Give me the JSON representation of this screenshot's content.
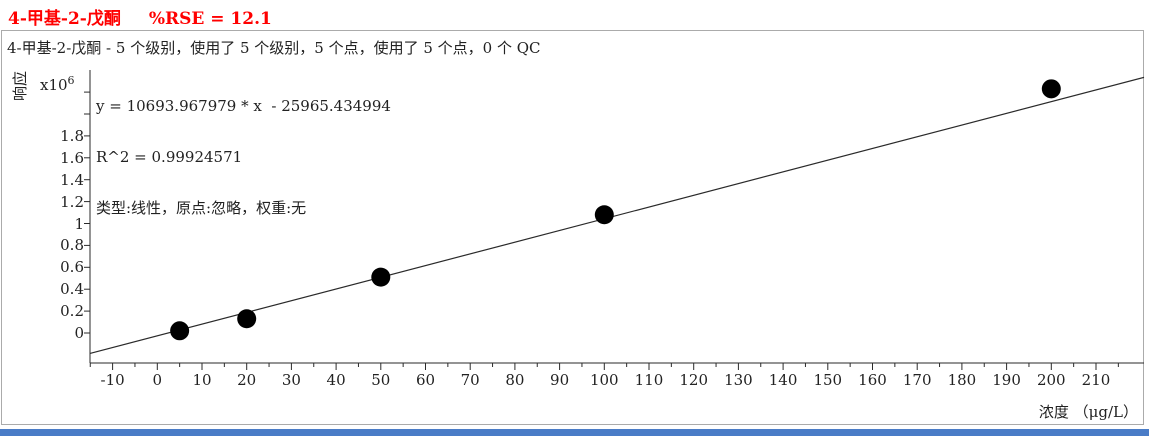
{
  "title": {
    "compound": "4-甲基-2-戊酮",
    "rse": "%RSE = 12.1"
  },
  "subtitle": "4-甲基-2-戊酮 - 5 个级别，使用了 5 个级别，5 个点，使用了 5 个点，0 个 QC",
  "equation": {
    "line1": "y = 10693.967979 * x  - 25965.434994",
    "line2": "R^2 = 0.99924571",
    "line3": "类型:线性，原点:忽略，权重:无"
  },
  "axes": {
    "y_label": "响应",
    "y_scale_base": "x10",
    "y_scale_exp": "6",
    "x_label": "浓度 （μg/L）"
  },
  "chart_data": {
    "type": "scatter",
    "title": "4-甲基-2-戊酮 %RSE = 12.1",
    "xlabel": "浓度 (μg/L)",
    "ylabel": "响应 (x10^6)",
    "x_range": [
      -15.1,
      220.7
    ],
    "y_range": [
      -274000,
      2402000
    ],
    "grid": false,
    "x_major_ticks": [
      -10,
      0,
      10,
      20,
      30,
      40,
      50,
      60,
      70,
      80,
      90,
      100,
      110,
      120,
      130,
      140,
      150,
      160,
      170,
      180,
      190,
      200,
      210
    ],
    "x_minor_tick_step": 5,
    "y_ticks": [
      {
        "v": 0,
        "label": "0"
      },
      {
        "v": 0.2,
        "label": "0.2"
      },
      {
        "v": 0.4,
        "label": "0.4"
      },
      {
        "v": 0.6,
        "label": "0.6"
      },
      {
        "v": 0.8,
        "label": "0.8"
      },
      {
        "v": 1,
        "label": "1"
      },
      {
        "v": 1.2,
        "label": "1.2"
      },
      {
        "v": 1.4,
        "label": "1.4"
      },
      {
        "v": 1.6,
        "label": "1.6"
      },
      {
        "v": 1.8,
        "label": "1.8"
      },
      {
        "v": 2,
        "label": ""
      },
      {
        "v": 2.2,
        "label": ""
      }
    ],
    "points": {
      "x": [
        5,
        20,
        50,
        100,
        200
      ],
      "y": [
        20000,
        130000,
        510000,
        1080000,
        2230000
      ]
    },
    "levels_used": 5,
    "points_used": 5,
    "qc_count": 0,
    "fit": {
      "type_label": "线性",
      "origin_label": "忽略",
      "weight_label": "无",
      "slope": 10693.967979,
      "intercept": -25965.434994,
      "r2": 0.99924571,
      "rse_percent": 12.1
    }
  },
  "colors": {
    "title_red": "#ff0000",
    "axis": "#2a2a2a",
    "point": "#000000",
    "border": "#ababab",
    "bottom_bar": "#4a7cc7"
  }
}
